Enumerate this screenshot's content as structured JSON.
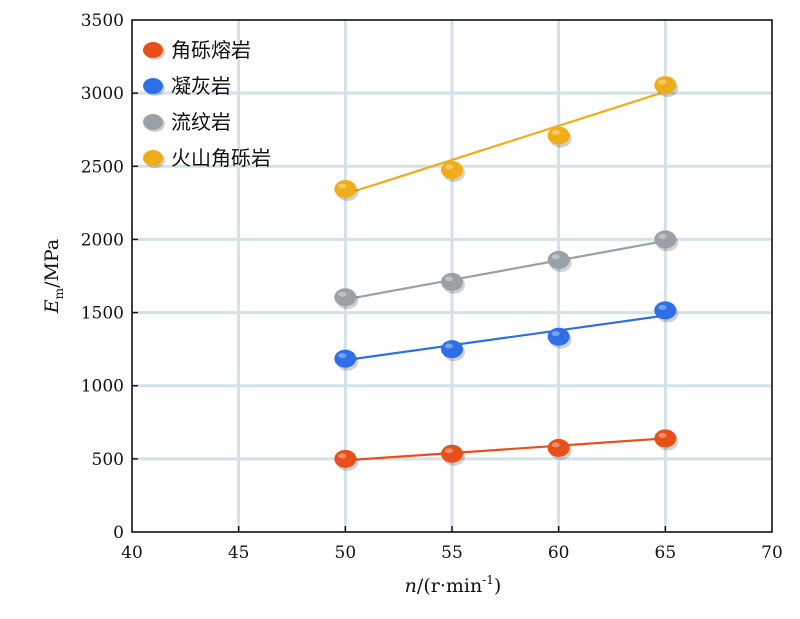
{
  "chart_data": {
    "type": "scatter",
    "title": "",
    "x": [
      50,
      55,
      60,
      65
    ],
    "xlim": [
      40,
      70
    ],
    "ylim": [
      0,
      3500
    ],
    "xticks": [
      40,
      45,
      50,
      55,
      60,
      65,
      70
    ],
    "yticks": [
      0,
      500,
      1000,
      1500,
      2000,
      2500,
      3000,
      3500
    ],
    "grid": true,
    "legend_position": "top-left",
    "xlabel": {
      "main": "n",
      "rest": "/(r·min",
      "sup": "-1",
      "close": ")"
    },
    "ylabel": {
      "main": "E",
      "sub": "m",
      "rest": "/MPa"
    },
    "series": [
      {
        "name": "角砾熔岩",
        "color": "#e8501a",
        "values": [
          500,
          535,
          575,
          640
        ],
        "fit": [
          490,
          640
        ]
      },
      {
        "name": "凝灰岩",
        "color": "#2f6fe6",
        "values": [
          1185,
          1250,
          1335,
          1515
        ],
        "fit": [
          1175,
          1480
        ]
      },
      {
        "name": "流纹岩",
        "color": "#9aa1a6",
        "values": [
          1605,
          1710,
          1860,
          2000
        ],
        "fit": [
          1590,
          1990
        ]
      },
      {
        "name": "火山角砾岩",
        "color": "#f0ad1a",
        "values": [
          2345,
          2475,
          2710,
          3055
        ],
        "fit": [
          2310,
          3010
        ]
      }
    ]
  }
}
